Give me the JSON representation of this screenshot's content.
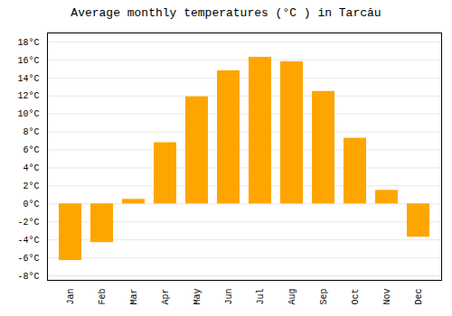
{
  "chart_data": {
    "type": "bar",
    "title": "Average monthly temperatures (°C ) in Tarcău",
    "categories": [
      "Jan",
      "Feb",
      "Mar",
      "Apr",
      "May",
      "Jun",
      "Jul",
      "Aug",
      "Sep",
      "Oct",
      "Nov",
      "Dec"
    ],
    "values": [
      -6.3,
      -4.3,
      0.5,
      6.8,
      11.9,
      14.8,
      16.3,
      15.8,
      12.5,
      7.3,
      1.5,
      -3.7
    ],
    "color": "#FFA500",
    "ylim": [
      -8.5,
      19
    ],
    "yticks": [
      {
        "value": -8,
        "label": "-8°C"
      },
      {
        "value": -6,
        "label": "-6°C"
      },
      {
        "value": -4,
        "label": "-4°C"
      },
      {
        "value": -2,
        "label": "-2°C"
      },
      {
        "value": 0,
        "label": "0°C"
      },
      {
        "value": 2,
        "label": "2°C"
      },
      {
        "value": 4,
        "label": "4°C"
      },
      {
        "value": 6,
        "label": "6°C"
      },
      {
        "value": 8,
        "label": "8°C"
      },
      {
        "value": 10,
        "label": "10°C"
      },
      {
        "value": 12,
        "label": "12°C"
      },
      {
        "value": 14,
        "label": "14°C"
      },
      {
        "value": 16,
        "label": "16°C"
      },
      {
        "value": 18,
        "label": "18°C"
      }
    ],
    "grid": true
  }
}
